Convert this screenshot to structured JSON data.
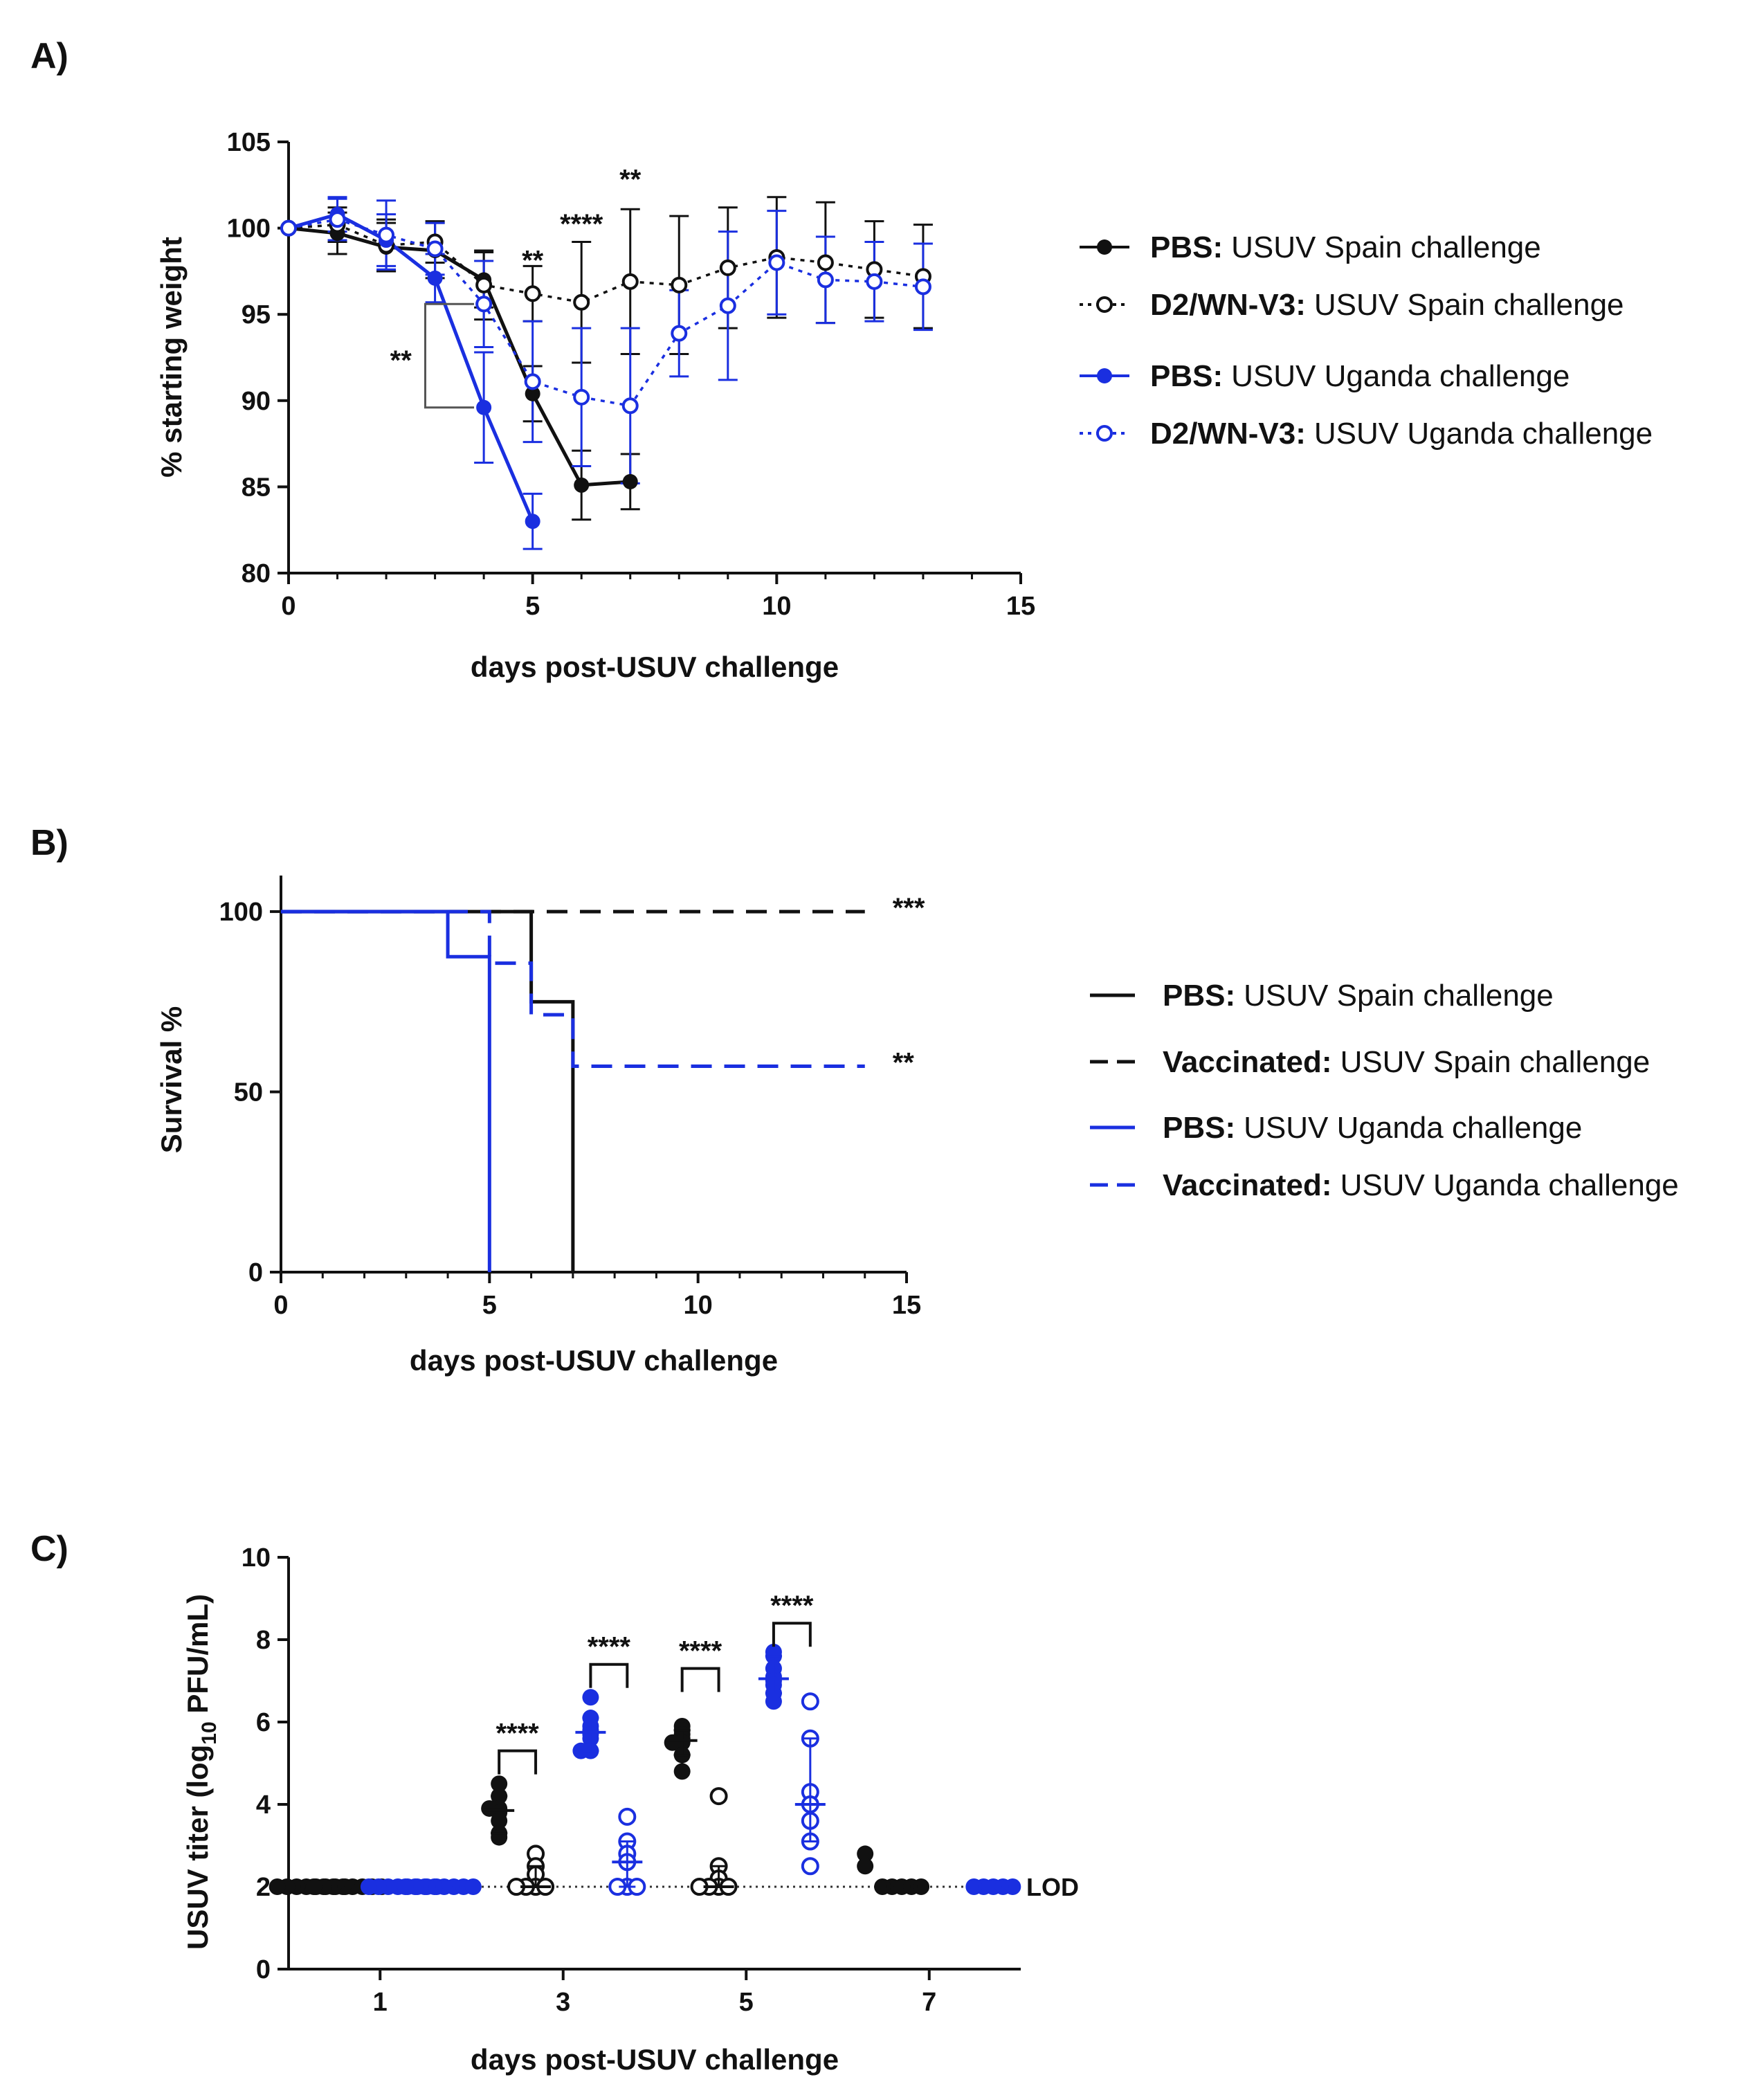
{
  "colors": {
    "black": "#111111",
    "blue": "#1a2fe0",
    "dotted": "#333333"
  },
  "chart_data": [
    {
      "panel": "A)",
      "type": "line",
      "xlabel": "days post-USUV challenge",
      "ylabel": "% starting weight",
      "xlim": [
        0,
        15
      ],
      "ylim": [
        80,
        105
      ],
      "xticks": [
        "0",
        "5",
        "10",
        "15"
      ],
      "yticks": [
        "80",
        "85",
        "90",
        "95",
        "100",
        "105"
      ],
      "series": [
        {
          "name": "PBS: USUV Spain challenge",
          "legend_bold": "PBS:",
          "legend_text": "USUV Spain challenge",
          "color": "black",
          "marker": "filled",
          "line": "solid",
          "x": [
            0,
            1,
            2,
            3,
            4,
            5,
            6,
            7
          ],
          "y": [
            100,
            99.7,
            98.9,
            98.7,
            97.0,
            90.4,
            85.1,
            85.3
          ],
          "err": [
            0,
            1.2,
            1.4,
            1.6,
            1.6,
            1.6,
            2.0,
            1.6
          ]
        },
        {
          "name": "D2/WN-V3: USUV Spain challenge",
          "legend_bold": "D2/WN-V3:",
          "legend_text": "USUV Spain challenge",
          "color": "black",
          "marker": "open",
          "line": "dotted",
          "x": [
            0,
            1,
            2,
            3,
            4,
            5,
            6,
            7,
            8,
            9,
            10,
            11,
            12,
            13
          ],
          "y": [
            100,
            100.2,
            99.0,
            99.2,
            96.7,
            96.2,
            95.7,
            96.9,
            96.7,
            97.7,
            98.3,
            98.0,
            97.6,
            97.2
          ],
          "err": [
            0,
            1.0,
            1.5,
            1.2,
            2.0,
            1.6,
            3.5,
            4.2,
            4.0,
            3.5,
            3.5,
            3.5,
            2.8,
            3.0
          ]
        },
        {
          "name": "PBS: USUV Uganda challenge",
          "legend_bold": "PBS:",
          "legend_text": "USUV Uganda challenge",
          "color": "blue",
          "marker": "filled",
          "line": "solid",
          "x": [
            0,
            1,
            2,
            3,
            4,
            5
          ],
          "y": [
            100,
            100.8,
            99.3,
            97.1,
            89.6,
            83.0
          ],
          "err": [
            0,
            1.0,
            1.5,
            1.4,
            3.2,
            1.6
          ]
        },
        {
          "name": "D2/WN-V3: USUV Uganda challenge",
          "legend_bold": "D2/WN-V3:",
          "legend_text": "USUV Uganda challenge",
          "color": "blue",
          "marker": "open",
          "line": "dotted",
          "x": [
            0,
            1,
            2,
            3,
            4,
            5,
            6,
            7,
            8,
            9,
            10,
            11,
            12,
            13
          ],
          "y": [
            100,
            100.5,
            99.6,
            98.8,
            95.6,
            91.1,
            90.2,
            89.7,
            93.9,
            95.5,
            98.0,
            97.0,
            96.9,
            96.6
          ],
          "err": [
            0,
            1.2,
            2.0,
            1.5,
            2.5,
            3.5,
            4.0,
            4.5,
            2.5,
            4.3,
            3.0,
            2.5,
            2.3,
            2.5
          ]
        }
      ],
      "annotations": [
        {
          "text": "**",
          "x": 2.3,
          "y": 91.8
        },
        {
          "text": "**",
          "x": 5.0,
          "y": 97.6
        },
        {
          "text": "****",
          "x": 6.0,
          "y": 99.7
        },
        {
          "text": "**",
          "x": 7.0,
          "y": 102.3
        }
      ],
      "bracket": {
        "x0": 2.8,
        "x1": 3.8,
        "y_top": 95.6,
        "y_bottom": 89.6
      }
    },
    {
      "panel": "B)",
      "type": "step",
      "xlabel": "days post-USUV challenge",
      "ylabel": "Survival %",
      "xlim": [
        0,
        15
      ],
      "ylim": [
        0,
        110
      ],
      "xticks": [
        "0",
        "5",
        "10",
        "15"
      ],
      "yticks": [
        "0",
        "50",
        "100"
      ],
      "series": [
        {
          "name": "PBS: USUV Spain challenge",
          "legend_bold": "PBS:",
          "legend_text": "USUV Spain challenge",
          "color": "black",
          "line": "solid",
          "x": [
            0,
            6,
            7
          ],
          "y": [
            100,
            75,
            0
          ],
          "end": 7
        },
        {
          "name": "Vaccinated: USUV Spain challenge",
          "legend_bold": "Vaccinated:",
          "legend_text": "USUV Spain challenge",
          "color": "black",
          "line": "dashed",
          "x": [
            0
          ],
          "y": [
            100
          ],
          "end": 14
        },
        {
          "name": "PBS: USUV Uganda challenge",
          "legend_bold": "PBS:",
          "legend_text": "USUV Uganda challenge",
          "color": "blue",
          "line": "solid",
          "x": [
            0,
            4,
            5
          ],
          "y": [
            100,
            87.5,
            0
          ],
          "end": 5
        },
        {
          "name": "Vaccinated: USUV Uganda challenge",
          "legend_bold": "Vaccinated:",
          "legend_text": "USUV Uganda challenge",
          "color": "blue",
          "line": "dashed",
          "x": [
            0,
            5,
            6,
            7
          ],
          "y": [
            100,
            85.7,
            71.4,
            57.1
          ],
          "end": 14
        }
      ],
      "annotations": [
        {
          "text": "***",
          "x": 14.0,
          "y": 100
        },
        {
          "text": "**",
          "x": 14.0,
          "y": 57.1
        }
      ]
    },
    {
      "panel": "C)",
      "type": "scatter",
      "xlabel": "days post-USUV challenge",
      "ylabel_main": "USUV titer (log",
      "ylabel_sub": "10",
      "ylabel_end": " PFU/mL)",
      "xlim": [
        0,
        8
      ],
      "ylim": [
        0,
        10
      ],
      "xticks": [
        {
          "label": "1",
          "x": 1
        },
        {
          "label": "3",
          "x": 3
        },
        {
          "label": "5",
          "x": 5
        },
        {
          "label": "7",
          "x": 7
        }
      ],
      "yticks": [
        "0",
        "2",
        "4",
        "6",
        "8",
        "10"
      ],
      "lod": {
        "label": "LOD",
        "value": 2
      },
      "groups": [
        {
          "day": 1,
          "x": 0.3,
          "color": "black",
          "marker": "filled",
          "values": [
            2,
            2,
            2,
            2,
            2,
            2,
            2,
            2
          ]
        },
        {
          "day": 1,
          "x": 0.7,
          "color": "black",
          "marker": "filled",
          "values": [
            2,
            2,
            2,
            2,
            2,
            2,
            2,
            2
          ]
        },
        {
          "day": 1,
          "x": 1.3,
          "color": "blue",
          "marker": "filled",
          "values": [
            2,
            2,
            2,
            2,
            2,
            2,
            2,
            2
          ]
        },
        {
          "day": 1,
          "x": 1.7,
          "color": "blue",
          "marker": "filled",
          "values": [
            2,
            2,
            2,
            2,
            2,
            2,
            2,
            2
          ]
        },
        {
          "day": 3,
          "x": 2.3,
          "color": "black",
          "marker": "filled",
          "values": [
            4.5,
            4.2,
            3.9,
            3.9,
            3.8,
            3.6,
            3.3,
            3.2
          ]
        },
        {
          "day": 3,
          "x": 2.7,
          "color": "black",
          "marker": "open",
          "values": [
            2.8,
            2.5,
            2.3,
            2.0,
            2.0,
            2.0,
            2.0
          ]
        },
        {
          "day": 3,
          "x": 3.3,
          "color": "blue",
          "marker": "filled",
          "values": [
            6.6,
            6.1,
            5.9,
            5.8,
            5.7,
            5.6,
            5.3,
            5.3
          ]
        },
        {
          "day": 3,
          "x": 3.7,
          "color": "blue",
          "marker": "open",
          "values": [
            3.7,
            3.1,
            2.8,
            2.6,
            2.0,
            2.0,
            2.0
          ]
        },
        {
          "day": 5,
          "x": 4.3,
          "color": "black",
          "marker": "filled",
          "values": [
            5.9,
            5.8,
            5.7,
            5.6,
            5.5,
            5.5,
            5.2,
            4.8
          ]
        },
        {
          "day": 5,
          "x": 4.7,
          "color": "black",
          "marker": "open",
          "values": [
            4.2,
            2.5,
            2.2,
            2.0,
            2.0,
            2.0,
            2.0
          ]
        },
        {
          "day": 5,
          "x": 5.3,
          "color": "blue",
          "marker": "filled",
          "values": [
            7.7,
            7.6,
            7.3,
            7.1,
            7.0,
            6.9,
            6.7,
            6.5
          ]
        },
        {
          "day": 5,
          "x": 5.7,
          "color": "blue",
          "marker": "open",
          "values": [
            6.5,
            5.6,
            4.3,
            4.0,
            3.6,
            3.1,
            2.5
          ]
        },
        {
          "day": 7,
          "x": 6.3,
          "color": "black",
          "marker": "filled",
          "values": [
            2.8,
            2.5
          ]
        },
        {
          "day": 7,
          "x": 6.7,
          "color": "black",
          "marker": "filled",
          "values": [
            2,
            2,
            2,
            2,
            2
          ]
        },
        {
          "day": 7,
          "x": 7.7,
          "color": "blue",
          "marker": "filled",
          "values": [
            2,
            2,
            2,
            2,
            2
          ]
        }
      ],
      "brackets": [
        {
          "text": "****",
          "x0": 2.3,
          "x1": 2.7,
          "y": 5.3
        },
        {
          "text": "****",
          "x0": 3.3,
          "x1": 3.7,
          "y": 7.4
        },
        {
          "text": "****",
          "x0": 4.3,
          "x1": 4.7,
          "y": 7.3
        },
        {
          "text": "****",
          "x0": 5.3,
          "x1": 5.7,
          "y": 8.4
        }
      ]
    }
  ]
}
